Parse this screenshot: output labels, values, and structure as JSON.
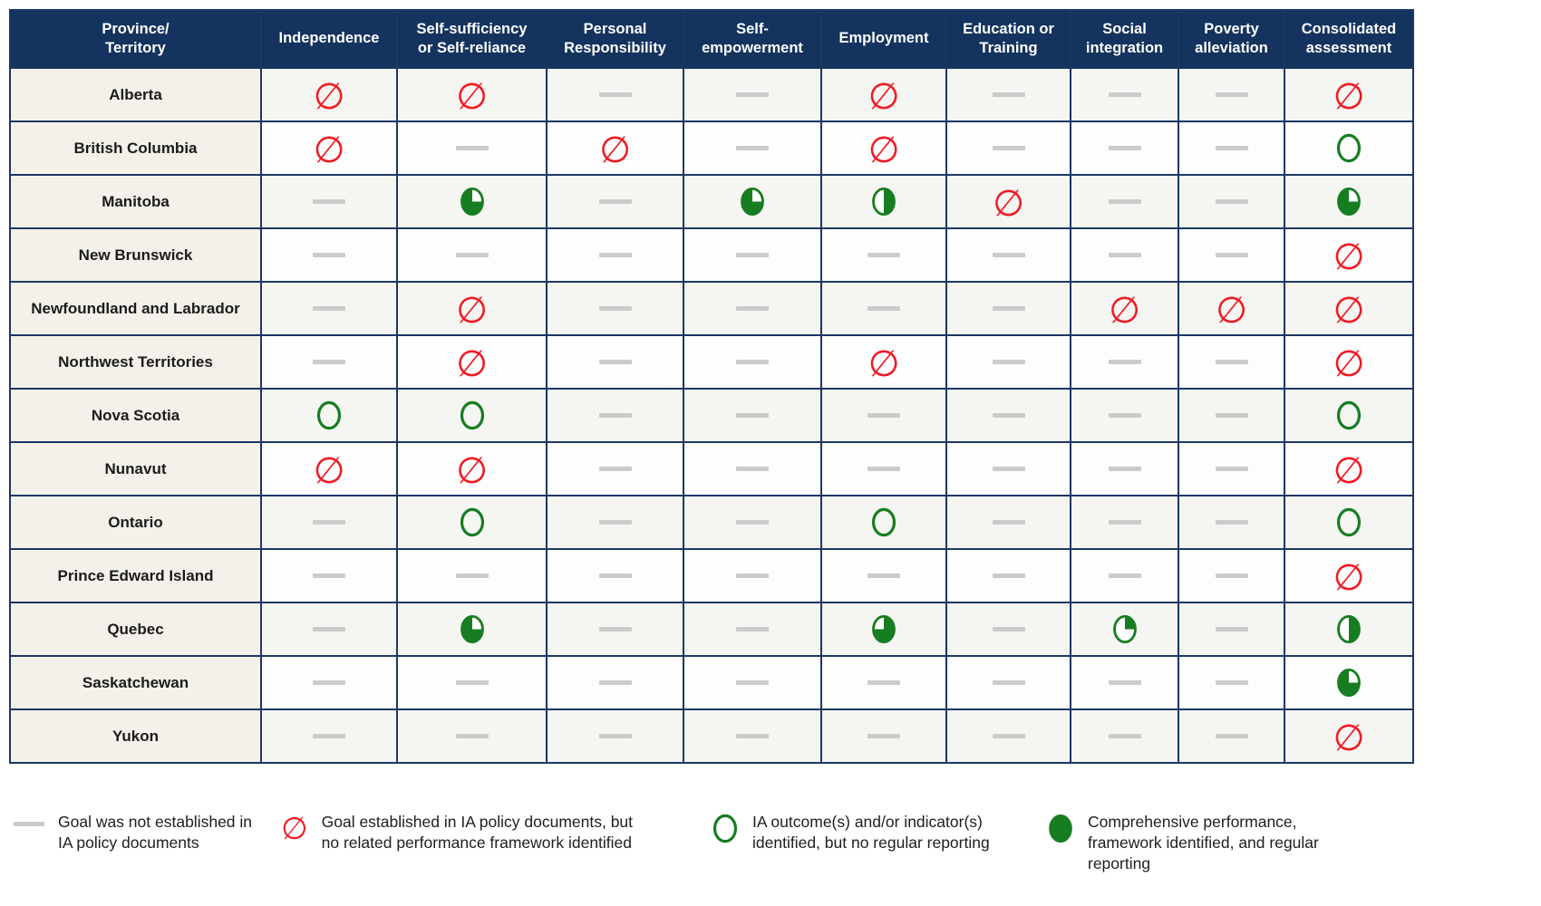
{
  "colors": {
    "header_bg": "#14335E",
    "border": "#1B3763",
    "red": "#EE1C25",
    "green": "#177D21",
    "dash": "#CBCBCB",
    "row_alt_bg": "#F5F5F2",
    "row_bg": "#FDFDFD",
    "label_col_bg": "#F4F1EB"
  },
  "chart_data": {
    "type": "table",
    "columns": [
      "Province/\nTerritory",
      "Independence",
      "Self-sufficiency\nor Self-reliance",
      "Personal\nResponsibility",
      "Self-\nempowerment",
      "Employment",
      "Education or\nTraining",
      "Social\nintegration",
      "Poverty\nalleviation",
      "Consolidated\nassessment"
    ],
    "rows": [
      {
        "province": "Alberta",
        "cells": [
          "no-framework",
          "no-framework",
          "none",
          "none",
          "no-framework",
          "none",
          "none",
          "none",
          "no-framework"
        ]
      },
      {
        "province": "British Columbia",
        "cells": [
          "no-framework",
          "none",
          "no-framework",
          "none",
          "no-framework",
          "none",
          "none",
          "none",
          "outcome"
        ]
      },
      {
        "province": "Manitoba",
        "cells": [
          "none",
          "pie75-tr",
          "none",
          "pie75-tr",
          "half-right",
          "no-framework",
          "none",
          "none",
          "pie75-tr"
        ]
      },
      {
        "province": "New Brunswick",
        "cells": [
          "none",
          "none",
          "none",
          "none",
          "none",
          "none",
          "none",
          "none",
          "no-framework"
        ]
      },
      {
        "province": "Newfoundland and Labrador",
        "cells": [
          "none",
          "no-framework",
          "none",
          "none",
          "none",
          "none",
          "no-framework",
          "no-framework",
          "no-framework"
        ]
      },
      {
        "province": "Northwest Territories",
        "cells": [
          "none",
          "no-framework",
          "none",
          "none",
          "no-framework",
          "none",
          "none",
          "none",
          "no-framework"
        ]
      },
      {
        "province": "Nova Scotia",
        "cells": [
          "outcome",
          "outcome",
          "none",
          "none",
          "none",
          "none",
          "none",
          "none",
          "outcome"
        ]
      },
      {
        "province": "Nunavut",
        "cells": [
          "no-framework",
          "no-framework",
          "none",
          "none",
          "none",
          "none",
          "none",
          "none",
          "no-framework"
        ]
      },
      {
        "province": "Ontario",
        "cells": [
          "none",
          "outcome",
          "none",
          "none",
          "outcome",
          "none",
          "none",
          "none",
          "outcome"
        ]
      },
      {
        "province": "Prince Edward Island",
        "cells": [
          "none",
          "none",
          "none",
          "none",
          "none",
          "none",
          "none",
          "none",
          "no-framework"
        ]
      },
      {
        "province": "Quebec",
        "cells": [
          "none",
          "pie75-tr",
          "none",
          "none",
          "pie75-tl",
          "none",
          "pie25-tr",
          "none",
          "half-right"
        ]
      },
      {
        "province": "Saskatchewan",
        "cells": [
          "none",
          "none",
          "none",
          "none",
          "none",
          "none",
          "none",
          "none",
          "pie75-tr"
        ]
      },
      {
        "province": "Yukon",
        "cells": [
          "none",
          "none",
          "none",
          "none",
          "none",
          "none",
          "none",
          "none",
          "no-framework"
        ]
      }
    ],
    "legend": [
      {
        "symbol": "none",
        "label": "Goal was not established in IA policy documents"
      },
      {
        "symbol": "no-framework",
        "label": "Goal established in IA policy documents, but no related performance framework identified"
      },
      {
        "symbol": "outcome",
        "label": "IA outcome(s) and/or indicator(s) identified, but no regular reporting"
      },
      {
        "symbol": "full",
        "label": "Comprehensive performance, framework identified, and regular reporting"
      }
    ],
    "layout_hints": {
      "grid": "on",
      "legend_position": "bottom"
    }
  }
}
